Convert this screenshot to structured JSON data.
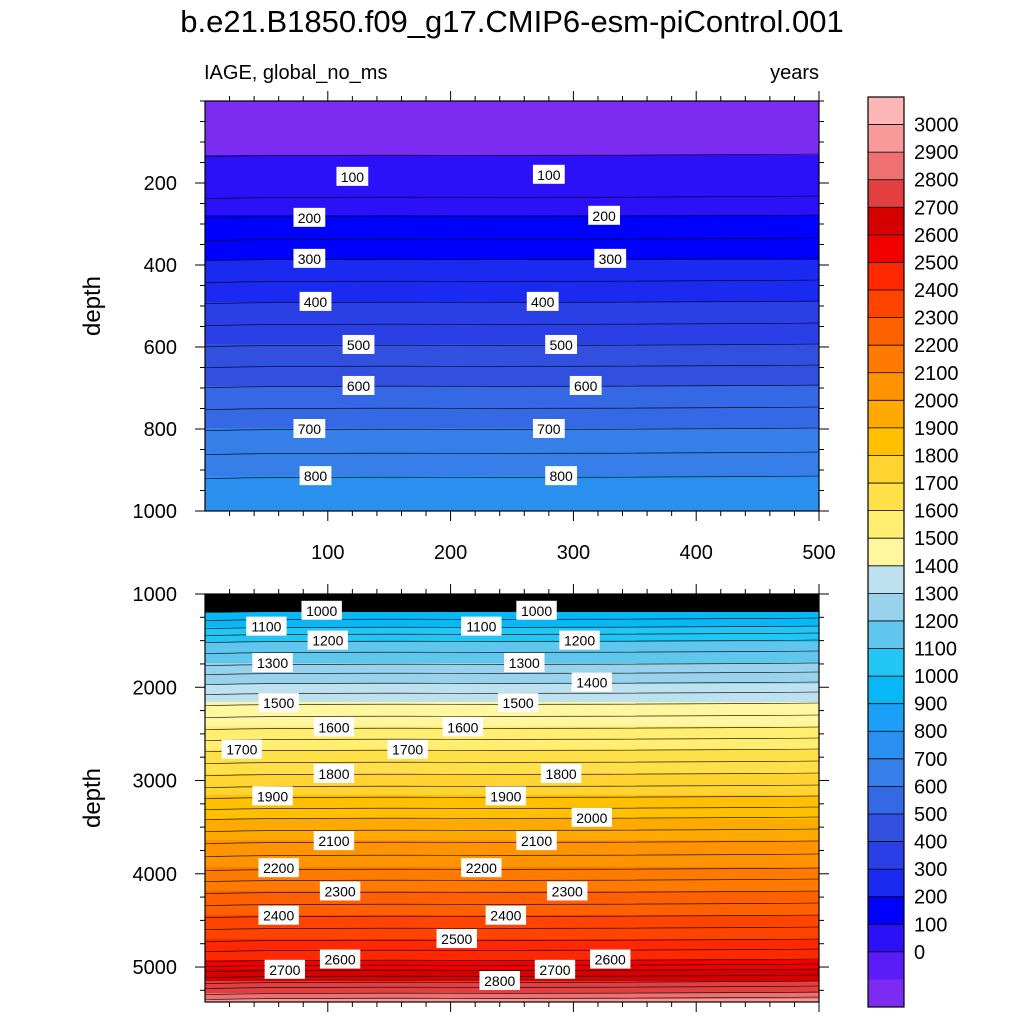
{
  "title": "b.e21.B1850.f09_g17.CMIP6-esm-piControl.001",
  "subtitle_left": "IAGE, global_no_ms",
  "subtitle_right": "years",
  "colorbar": {
    "labels": [
      "0",
      "100",
      "200",
      "300",
      "400",
      "500",
      "600",
      "700",
      "800",
      "900",
      "1000",
      "1100",
      "1200",
      "1300",
      "1400",
      "1500",
      "1600",
      "1700",
      "1800",
      "1900",
      "2000",
      "2100",
      "2200",
      "2300",
      "2400",
      "2500",
      "2600",
      "2700",
      "2800",
      "2900",
      "3000"
    ],
    "colors": [
      "#7B2CF0",
      "#5B1CF8",
      "#2B10F8",
      "#0000FF",
      "#1A2AF0",
      "#2A3FE6",
      "#3150E0",
      "#3568E4",
      "#367EE8",
      "#2A90F0",
      "#1C9FF8",
      "#08B8F6",
      "#22C6F4",
      "#60C6EE",
      "#98D2EC",
      "#BEE1F0",
      "#FFF7A0",
      "#FFEE70",
      "#FFE048",
      "#FFD330",
      "#FFC000",
      "#FFAA00",
      "#FF9400",
      "#FF7A00",
      "#FF6000",
      "#FF4400",
      "#FF2800",
      "#F20000",
      "#D60000",
      "#E24040",
      "#EE7070",
      "#F89A9A",
      "#FDB6B6"
    ],
    "contour_lines": "#000000"
  },
  "chart_data": [
    {
      "type": "contour",
      "panel": "top",
      "ylabel": "depth",
      "xlabel": "",
      "xlim": [
        0,
        500
      ],
      "ylim": [
        1000,
        0
      ],
      "x_ticks": [
        100,
        200,
        300,
        400,
        500
      ],
      "y_ticks": [
        200,
        400,
        600,
        800,
        1000
      ],
      "contour_labels": [
        {
          "value": "100",
          "x": 120,
          "y": 185
        },
        {
          "value": "100",
          "x": 280,
          "y": 180
        },
        {
          "value": "200",
          "x": 85,
          "y": 285
        },
        {
          "value": "200",
          "x": 325,
          "y": 280
        },
        {
          "value": "300",
          "x": 85,
          "y": 385
        },
        {
          "value": "300",
          "x": 330,
          "y": 385
        },
        {
          "value": "400",
          "x": 90,
          "y": 490
        },
        {
          "value": "400",
          "x": 275,
          "y": 490
        },
        {
          "value": "500",
          "x": 125,
          "y": 595
        },
        {
          "value": "500",
          "x": 290,
          "y": 595
        },
        {
          "value": "600",
          "x": 125,
          "y": 695
        },
        {
          "value": "600",
          "x": 310,
          "y": 695
        },
        {
          "value": "700",
          "x": 85,
          "y": 800
        },
        {
          "value": "700",
          "x": 280,
          "y": 800
        },
        {
          "value": "800",
          "x": 90,
          "y": 915
        },
        {
          "value": "800",
          "x": 290,
          "y": 915
        }
      ]
    },
    {
      "type": "contour",
      "panel": "bottom",
      "ylabel": "depth",
      "xlabel": "",
      "xlim": [
        0,
        500
      ],
      "ylim": [
        5375,
        1000
      ],
      "x_ticks": [
        100,
        200,
        300,
        400,
        500
      ],
      "y_ticks": [
        1000,
        2000,
        3000,
        4000,
        5000
      ],
      "contour_labels": [
        {
          "value": "1000",
          "x": 95,
          "y": 1180
        },
        {
          "value": "1000",
          "x": 270,
          "y": 1180
        },
        {
          "value": "1100",
          "x": 50,
          "y": 1350
        },
        {
          "value": "1100",
          "x": 225,
          "y": 1350
        },
        {
          "value": "1200",
          "x": 100,
          "y": 1500
        },
        {
          "value": "1200",
          "x": 305,
          "y": 1500
        },
        {
          "value": "1300",
          "x": 55,
          "y": 1740
        },
        {
          "value": "1300",
          "x": 260,
          "y": 1740
        },
        {
          "value": "1400",
          "x": 315,
          "y": 1950
        },
        {
          "value": "1500",
          "x": 60,
          "y": 2170
        },
        {
          "value": "1500",
          "x": 255,
          "y": 2170
        },
        {
          "value": "1600",
          "x": 105,
          "y": 2430
        },
        {
          "value": "1600",
          "x": 210,
          "y": 2430
        },
        {
          "value": "1700",
          "x": 30,
          "y": 2670
        },
        {
          "value": "1700",
          "x": 165,
          "y": 2670
        },
        {
          "value": "1800",
          "x": 105,
          "y": 2930
        },
        {
          "value": "1800",
          "x": 290,
          "y": 2930
        },
        {
          "value": "1900",
          "x": 55,
          "y": 3170
        },
        {
          "value": "1900",
          "x": 245,
          "y": 3170
        },
        {
          "value": "2000",
          "x": 315,
          "y": 3400
        },
        {
          "value": "2100",
          "x": 105,
          "y": 3650
        },
        {
          "value": "2100",
          "x": 270,
          "y": 3650
        },
        {
          "value": "2200",
          "x": 60,
          "y": 3940
        },
        {
          "value": "2200",
          "x": 225,
          "y": 3940
        },
        {
          "value": "2300",
          "x": 110,
          "y": 4190
        },
        {
          "value": "2300",
          "x": 295,
          "y": 4190
        },
        {
          "value": "2400",
          "x": 60,
          "y": 4450
        },
        {
          "value": "2400",
          "x": 245,
          "y": 4450
        },
        {
          "value": "2500",
          "x": 205,
          "y": 4700
        },
        {
          "value": "2600",
          "x": 110,
          "y": 4920
        },
        {
          "value": "2600",
          "x": 330,
          "y": 4920
        },
        {
          "value": "2700",
          "x": 65,
          "y": 5030
        },
        {
          "value": "2700",
          "x": 285,
          "y": 5030
        },
        {
          "value": "2800",
          "x": 240,
          "y": 5150
        }
      ]
    }
  ]
}
